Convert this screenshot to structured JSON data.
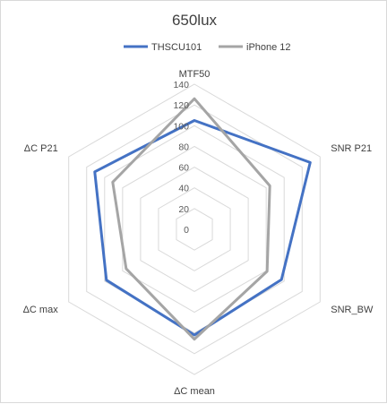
{
  "chart_data": {
    "type": "radar",
    "title": "650lux",
    "axes": [
      "MTF50",
      "SNR P21",
      "SNR_BW",
      "ΔC mean",
      "ΔC max",
      "ΔC P21"
    ],
    "rlim": [
      0,
      140
    ],
    "ticks": [
      0,
      20,
      40,
      60,
      80,
      100,
      120,
      140
    ],
    "tick_labels": [
      "0",
      "20",
      "40",
      "60",
      "80",
      "100",
      "120",
      "140"
    ],
    "grid": true,
    "legend_position": "top",
    "series": [
      {
        "name": "THSCU101",
        "color": "#4472c4",
        "values": [
          105,
          129,
          97,
          102,
          98,
          111
        ]
      },
      {
        "name": "iPhone 12",
        "color": "#a5a5a5",
        "values": [
          126,
          84,
          81,
          106,
          76,
          91
        ]
      }
    ]
  }
}
